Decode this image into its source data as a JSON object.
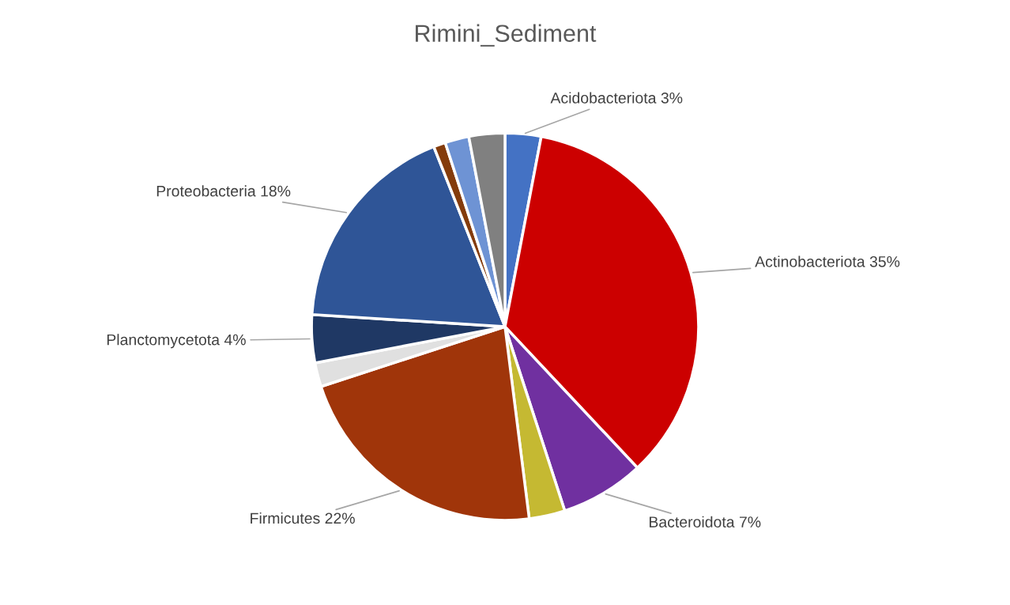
{
  "chart_data": {
    "type": "pie",
    "title": "Rimini_Sediment",
    "categories": [
      "Acidobacteriota",
      "Actinobacteriota",
      "Bacteroidota",
      null,
      "Firmicutes",
      null,
      "Planctomycetota",
      "Proteobacteria",
      null,
      null,
      null
    ],
    "values": [
      3,
      35,
      7,
      3,
      22,
      2,
      4,
      18,
      1,
      2,
      3
    ],
    "value_labels": [
      "3%",
      "35%",
      "7%",
      null,
      "22%",
      null,
      "4%",
      "18%",
      null,
      null,
      null
    ],
    "colors": [
      "#4472c4",
      "#cc0000",
      "#7030a0",
      "#c5b932",
      "#a0350a",
      "#e0e0e0",
      "#1f3864",
      "#2f5597",
      "#843c0c",
      "#6e93d4",
      "#808080"
    ],
    "legend": false
  }
}
